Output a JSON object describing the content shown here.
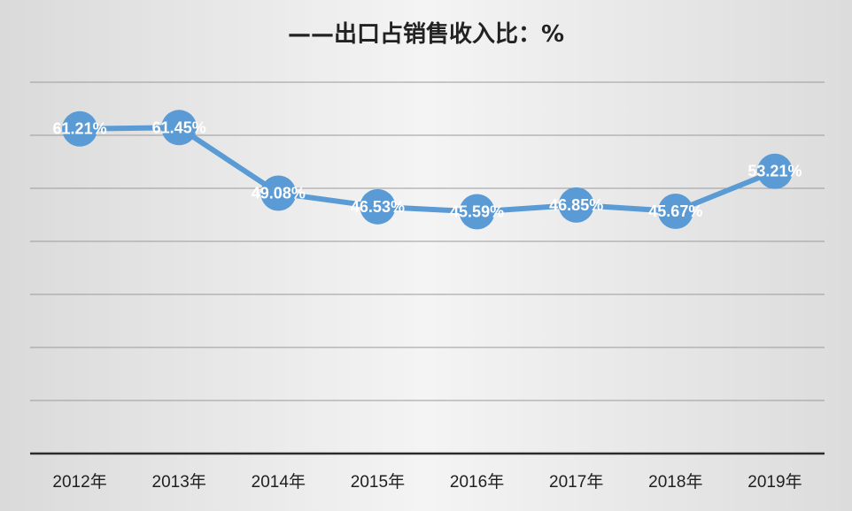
{
  "chart_data": {
    "type": "line",
    "title": "——出口占销售收入比：%",
    "categories": [
      "2012年",
      "2013年",
      "2014年",
      "2015年",
      "2016年",
      "2017年",
      "2018年",
      "2019年"
    ],
    "values": [
      61.21,
      61.45,
      49.08,
      46.53,
      45.59,
      46.85,
      45.67,
      53.21
    ],
    "data_labels": [
      "61.21%",
      "61.45%",
      "49.08%",
      "46.53%",
      "45.59%",
      "46.85%",
      "45.67%",
      "53.21%"
    ],
    "ylim": [
      0,
      70
    ],
    "grid": true,
    "legend": "none",
    "colors": {
      "line": "#5b9bd5",
      "marker": "#5b9bd5",
      "grid": "#9a9a9a",
      "axis": "#2b2b2b",
      "label": "#ffffff"
    }
  }
}
